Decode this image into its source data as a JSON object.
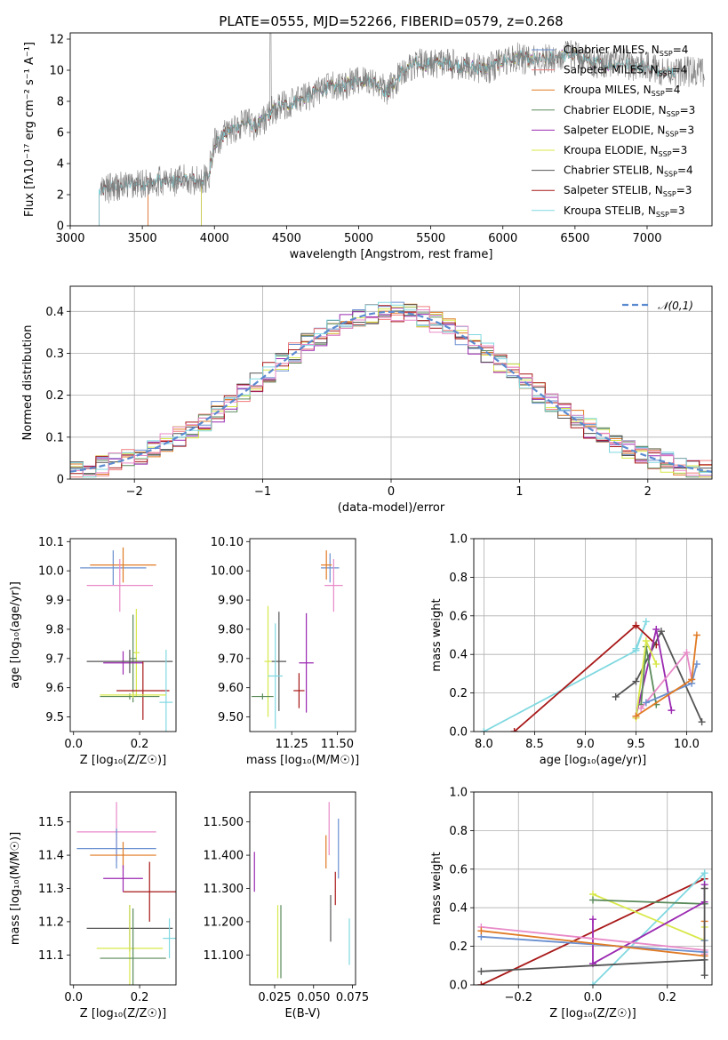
{
  "colors": {
    "Chabrier MILES": "#6a8fd0",
    "Salpeter MILES": "#f07c7c",
    "Kroupa MILES": "#e07a24",
    "Chabrier ELODIE": "#5a8a5a",
    "Salpeter ELODIE": "#9a28b0",
    "Kroupa ELODIE": "#d8e84a",
    "Chabrier STELIB": "#555555",
    "Salpeter STELIB": "#a81818",
    "Kroupa STELIB": "#80d8e0",
    "Pink": "#e88ac8",
    "Gauss": "#5a8ad0"
  },
  "chart_data": [
    {
      "id": "spectrum",
      "type": "line",
      "title": "PLATE=0555, MJD=52266, FIBERID=0579, z=0.268",
      "xlabel": "wavelength [Angstrom, rest frame]",
      "ylabel": "Flux [fλ10⁻¹⁷ erg cm⁻² s⁻¹ A⁻¹]",
      "xlim": [
        3000,
        7450
      ],
      "ylim": [
        0,
        12.4
      ],
      "xticks": [
        3000,
        3500,
        4000,
        4500,
        5000,
        5500,
        6000,
        6500,
        7000
      ],
      "yticks": [
        0,
        2,
        4,
        6,
        8,
        10,
        12
      ],
      "legend_position": "upper-right",
      "legend": [
        "Chabrier MILES, N_SSP=4",
        "Salpeter MILES, N_SSP=4",
        "Kroupa MILES, N_SSP=4",
        "Chabrier ELODIE, N_SSP=3",
        "Salpeter ELODIE, N_SSP=3",
        "Kroupa ELODIE, N_SSP=3",
        "Chabrier STELIB, N_SSP=4",
        "Salpeter STELIB, N_SSP=3",
        "Kroupa STELIB, N_SSP=3"
      ],
      "legend_text": [
        {
          "name": "Chabrier MILES, N",
          "sub": "SSP",
          "tail": "=4"
        },
        {
          "name": "Salpeter MILES, N",
          "sub": "SSP",
          "tail": "=4"
        },
        {
          "name": "Kroupa MILES, N",
          "sub": "SSP",
          "tail": "=4"
        },
        {
          "name": "Chabrier ELODIE, N",
          "sub": "SSP",
          "tail": "=3"
        },
        {
          "name": "Salpeter ELODIE, N",
          "sub": "SSP",
          "tail": "=3"
        },
        {
          "name": "Kroupa ELODIE, N",
          "sub": "SSP",
          "tail": "=3"
        },
        {
          "name": "Chabrier STELIB, N",
          "sub": "SSP",
          "tail": "=4"
        },
        {
          "name": "Salpeter STELIB, N",
          "sub": "SSP",
          "tail": "=3"
        },
        {
          "name": "Kroupa STELIB, N",
          "sub": "SSP",
          "tail": "=3"
        }
      ],
      "continuum": [
        [
          3200,
          2.2
        ],
        [
          3300,
          2.5
        ],
        [
          3400,
          2.6
        ],
        [
          3500,
          2.7
        ],
        [
          3600,
          2.9
        ],
        [
          3700,
          2.8
        ],
        [
          3800,
          3.0
        ],
        [
          3900,
          2.9
        ],
        [
          3960,
          3.2
        ],
        [
          4000,
          5.3
        ],
        [
          4100,
          6.1
        ],
        [
          4200,
          6.6
        ],
        [
          4300,
          6.4
        ],
        [
          4400,
          7.4
        ],
        [
          4500,
          7.8
        ],
        [
          4600,
          8.1
        ],
        [
          4700,
          8.6
        ],
        [
          4800,
          8.9
        ],
        [
          4900,
          9.0
        ],
        [
          5000,
          9.4
        ],
        [
          5100,
          9.3
        ],
        [
          5200,
          8.6
        ],
        [
          5300,
          9.9
        ],
        [
          5400,
          10.4
        ],
        [
          5500,
          10.4
        ],
        [
          5600,
          10.5
        ],
        [
          5700,
          10.3
        ],
        [
          5800,
          10.2
        ],
        [
          5900,
          10.1
        ],
        [
          6000,
          10.6
        ],
        [
          6100,
          10.8
        ],
        [
          6200,
          10.6
        ],
        [
          6300,
          10.7
        ],
        [
          6400,
          10.9
        ],
        [
          6500,
          11.0
        ],
        [
          6600,
          10.6
        ],
        [
          6700,
          10.3
        ],
        [
          6800,
          10.5
        ],
        [
          6900,
          10.3
        ],
        [
          7000,
          10.2
        ],
        [
          7100,
          10.0
        ],
        [
          7200,
          9.9
        ]
      ]
    },
    {
      "id": "residuals",
      "type": "step",
      "xlabel": "(data-model)/error",
      "ylabel": "Normed distribution",
      "xlim": [
        -2.5,
        2.5
      ],
      "ylim": [
        0,
        0.46
      ],
      "xticks": [
        -2,
        -1,
        0,
        1,
        2
      ],
      "yticks": [
        0.0,
        0.1,
        0.2,
        0.3,
        0.4
      ],
      "legend_position": "upper-right",
      "legend": "𝒩(0,1)",
      "bins": 50
    },
    {
      "id": "age_vs_Z",
      "type": "errorbar",
      "xlabel": "Z [log₁₀(Z/Z☉)]",
      "ylabel": "age  [log₁₀(age/yr)]",
      "xlim": [
        -0.01,
        0.31
      ],
      "ylim": [
        9.45,
        10.11
      ],
      "xticks": [
        0.0,
        0.2
      ],
      "yticks": [
        9.5,
        9.6,
        9.7,
        9.8,
        9.9,
        10.0,
        10.1
      ],
      "points": [
        {
          "c": "Chabrier MILES",
          "x": 0.12,
          "xe": 0.1,
          "y": 10.01,
          "ye": 0.06
        },
        {
          "c": "Kroupa MILES",
          "x": 0.15,
          "xe": 0.1,
          "y": 10.02,
          "ye": 0.06
        },
        {
          "c": "Pink",
          "x": 0.14,
          "xe": 0.1,
          "y": 9.95,
          "ye": 0.09
        },
        {
          "c": "Kroupa ELODIE",
          "x": 0.19,
          "xe": 0.01,
          "y": 9.72,
          "ye": 0.15
        },
        {
          "c": "Chabrier ELODIE",
          "x": 0.18,
          "xe": 0.01,
          "y": 9.7,
          "ye": 0.15
        },
        {
          "c": "Salpeter ELODIE",
          "x": 0.15,
          "xe": 0.06,
          "y": 9.685,
          "ye": 0.04
        },
        {
          "c": "Chabrier STELIB",
          "x": 0.17,
          "xe": 0.13,
          "y": 9.69,
          "ye": 0.04
        },
        {
          "c": "Salpeter STELIB",
          "x": 0.21,
          "xe": 0.08,
          "y": 9.59,
          "ye": 0.1
        },
        {
          "c": "Kroupa STELIB",
          "x": 0.28,
          "xe": 0.02,
          "y": 9.55,
          "ye": 0.18
        },
        {
          "c": "Chabrier ELODIE",
          "x": 0.17,
          "xe": 0.09,
          "y": 9.57,
          "ye": 0.01
        },
        {
          "c": "Kroupa ELODIE",
          "x": 0.18,
          "xe": 0.1,
          "y": 9.575,
          "ye": 0.01
        }
      ]
    },
    {
      "id": "age_vs_mass",
      "type": "errorbar",
      "xlabel": "mass [log₁₀(M/M☉)]",
      "ylabel": "",
      "xlim": [
        11.02,
        11.6
      ],
      "ylim": [
        9.45,
        10.11
      ],
      "xticks": [
        11.25,
        11.5
      ],
      "yticks": [
        9.5,
        9.6,
        9.7,
        9.8,
        9.9,
        10.0,
        10.1
      ],
      "points": [
        {
          "c": "Chabrier MILES",
          "x": 11.46,
          "xe": 0.05,
          "y": 10.01,
          "ye": 0.05
        },
        {
          "c": "Kroupa MILES",
          "x": 11.44,
          "xe": 0.03,
          "y": 10.02,
          "ye": 0.05
        },
        {
          "c": "Pink",
          "x": 11.48,
          "xe": 0.05,
          "y": 9.95,
          "ye": 0.09
        },
        {
          "c": "Salpeter ELODIE",
          "x": 11.33,
          "xe": 0.04,
          "y": 9.685,
          "ye": 0.17
        },
        {
          "c": "Chabrier STELIB",
          "x": 11.18,
          "xe": 0.04,
          "y": 9.69,
          "ye": 0.17
        },
        {
          "c": "Kroupa ELODIE",
          "x": 11.12,
          "xe": 0.02,
          "y": 9.69,
          "ye": 0.19
        },
        {
          "c": "Kroupa STELIB",
          "x": 11.16,
          "xe": 0.04,
          "y": 9.64,
          "ye": 0.18
        },
        {
          "c": "Salpeter STELIB",
          "x": 11.29,
          "xe": 0.03,
          "y": 9.59,
          "ye": 0.06
        },
        {
          "c": "Chabrier ELODIE",
          "x": 11.09,
          "xe": 0.06,
          "y": 9.57,
          "ye": 0.01
        }
      ]
    },
    {
      "id": "mw_vs_age",
      "type": "line",
      "xlabel": "age  [log₁₀(age/yr)]",
      "ylabel": "mass weight",
      "xlim": [
        7.9,
        10.25
      ],
      "ylim": [
        0,
        1.0
      ],
      "xticks": [
        8.0,
        8.5,
        9.0,
        9.5,
        10.0
      ],
      "yticks": [
        0.0,
        0.2,
        0.4,
        0.6,
        0.8,
        1.0
      ],
      "series": [
        {
          "c": "Kroupa STELIB",
          "x": [
            8.0,
            9.5,
            9.6,
            9.5
          ],
          "y": [
            0.0,
            0.42,
            0.57,
            0.43
          ]
        },
        {
          "c": "Salpeter STELIB",
          "x": [
            8.3,
            9.5,
            9.7,
            9.5
          ],
          "y": [
            0.0,
            0.55,
            0.45,
            0.55
          ]
        },
        {
          "c": "Chabrier STELIB",
          "x": [
            9.3,
            9.5,
            9.75,
            10.15
          ],
          "y": [
            0.18,
            0.26,
            0.52,
            0.05
          ]
        },
        {
          "c": "Salpeter ELODIE",
          "x": [
            9.5,
            9.7,
            9.85
          ],
          "y": [
            0.08,
            0.53,
            0.11
          ]
        },
        {
          "c": "Chabrier ELODIE",
          "x": [
            9.55,
            9.6,
            9.7
          ],
          "y": [
            0.14,
            0.44,
            0.14
          ]
        },
        {
          "c": "Kroupa ELODIE",
          "x": [
            9.5,
            9.6,
            9.7
          ],
          "y": [
            0.07,
            0.47,
            0.35
          ]
        },
        {
          "c": "Pink",
          "x": [
            9.55,
            10.0,
            10.05
          ],
          "y": [
            0.12,
            0.41,
            0.27
          ]
        },
        {
          "c": "Chabrier MILES",
          "x": [
            9.6,
            10.05,
            10.1
          ],
          "y": [
            0.15,
            0.25,
            0.35
          ]
        },
        {
          "c": "Kroupa MILES",
          "x": [
            9.5,
            10.05,
            10.1
          ],
          "y": [
            0.08,
            0.27,
            0.5
          ]
        }
      ]
    },
    {
      "id": "mass_vs_Z",
      "type": "errorbar",
      "xlabel": "Z [log₁₀(Z/Z☉)]",
      "ylabel": "mass [log₁₀(M/M☉)]",
      "xlim": [
        -0.01,
        0.31
      ],
      "ylim": [
        11.01,
        11.59
      ],
      "xticks": [
        0.0,
        0.2
      ],
      "yticks": [
        11.1,
        11.2,
        11.3,
        11.4,
        11.5
      ],
      "points": [
        {
          "c": "Pink",
          "x": 0.13,
          "xe": 0.12,
          "y": 11.47,
          "ye": 0.09
        },
        {
          "c": "Chabrier MILES",
          "x": 0.13,
          "xe": 0.12,
          "y": 11.42,
          "ye": 0.06
        },
        {
          "c": "Kroupa MILES",
          "x": 0.15,
          "xe": 0.1,
          "y": 11.4,
          "ye": 0.04
        },
        {
          "c": "Salpeter ELODIE",
          "x": 0.15,
          "xe": 0.06,
          "y": 11.33,
          "ye": 0.04
        },
        {
          "c": "Salpeter STELIB",
          "x": 0.23,
          "xe": 0.08,
          "y": 11.29,
          "ye": 0.09
        },
        {
          "c": "Chabrier STELIB",
          "x": 0.17,
          "xe": 0.13,
          "y": 11.18,
          "ye": 0.07
        },
        {
          "c": "Kroupa STELIB",
          "x": 0.29,
          "xe": 0.02,
          "y": 11.15,
          "ye": 0.06
        },
        {
          "c": "Kroupa ELODIE",
          "x": 0.17,
          "xe": 0.1,
          "y": 11.12,
          "ye": 0.13
        },
        {
          "c": "Chabrier ELODIE",
          "x": 0.18,
          "xe": 0.1,
          "y": 11.09,
          "ye": 0.15
        }
      ]
    },
    {
      "id": "mass_vs_ebv",
      "type": "errorbar",
      "xlabel": "E(B-V)",
      "ylabel": "",
      "xlim": [
        0.009,
        0.077
      ],
      "ylim": [
        11.01,
        11.59
      ],
      "xticks": [
        0.025,
        0.05,
        0.075
      ],
      "yticks": [
        11.1,
        11.2,
        11.3,
        11.4,
        11.5
      ],
      "points": [
        {
          "c": "Salpeter ELODIE",
          "x": 0.012,
          "y": 11.35,
          "ye": 0.06
        },
        {
          "c": "Kroupa ELODIE",
          "x": 0.027,
          "y": 11.14,
          "ye": 0.11
        },
        {
          "c": "Chabrier ELODIE",
          "x": 0.029,
          "y": 11.14,
          "ye": 0.11
        },
        {
          "c": "Pink",
          "x": 0.06,
          "y": 11.48,
          "ye": 0.08
        },
        {
          "c": "Kroupa MILES",
          "x": 0.058,
          "y": 11.41,
          "ye": 0.05
        },
        {
          "c": "Chabrier MILES",
          "x": 0.066,
          "y": 11.42,
          "ye": 0.09
        },
        {
          "c": "Salpeter STELIB",
          "x": 0.064,
          "y": 11.3,
          "ye": 0.05
        },
        {
          "c": "Chabrier STELIB",
          "x": 0.061,
          "y": 11.21,
          "ye": 0.07
        },
        {
          "c": "Kroupa STELIB",
          "x": 0.073,
          "y": 11.14,
          "ye": 0.07
        }
      ]
    },
    {
      "id": "mw_vs_Z",
      "type": "line",
      "xlabel": "Z [log₁₀(Z/Z☉)]",
      "ylabel": "mass weight",
      "xlim": [
        -0.32,
        0.32
      ],
      "ylim": [
        0,
        1.0
      ],
      "xticks": [
        -0.2,
        0.0,
        0.2
      ],
      "yticks": [
        0.0,
        0.2,
        0.4,
        0.6,
        0.8,
        1.0
      ],
      "series": [
        {
          "c": "Salpeter STELIB",
          "x": [
            -0.3,
            0.3
          ],
          "y": [
            0.0,
            0.55
          ]
        },
        {
          "c": "Kroupa STELIB",
          "x": [
            0.0,
            0.3,
            0.3
          ],
          "y": [
            0.0,
            0.58,
            0.42
          ]
        },
        {
          "c": "Kroupa ELODIE",
          "x": [
            0.0,
            0.3,
            0.3
          ],
          "y": [
            0.47,
            0.23,
            0.3
          ]
        },
        {
          "c": "Chabrier ELODIE",
          "x": [
            0.0,
            0.3
          ],
          "y": [
            0.44,
            0.42
          ]
        },
        {
          "c": "Salpeter ELODIE",
          "x": [
            0.0,
            0.0,
            0.3,
            0.3
          ],
          "y": [
            0.34,
            0.11,
            0.43,
            0.52
          ]
        },
        {
          "c": "Pink",
          "x": [
            -0.3,
            0.3,
            0.3
          ],
          "y": [
            0.3,
            0.18,
            0.16
          ]
        },
        {
          "c": "Chabrier MILES",
          "x": [
            -0.3,
            0.3,
            0.3
          ],
          "y": [
            0.25,
            0.17,
            0.23
          ]
        },
        {
          "c": "Kroupa MILES",
          "x": [
            -0.3,
            0.3,
            0.3
          ],
          "y": [
            0.28,
            0.15,
            0.33
          ]
        },
        {
          "c": "Chabrier STELIB",
          "x": [
            -0.3,
            0.3,
            0.3,
            0.3
          ],
          "y": [
            0.07,
            0.13,
            0.05,
            0.5
          ]
        }
      ]
    }
  ]
}
